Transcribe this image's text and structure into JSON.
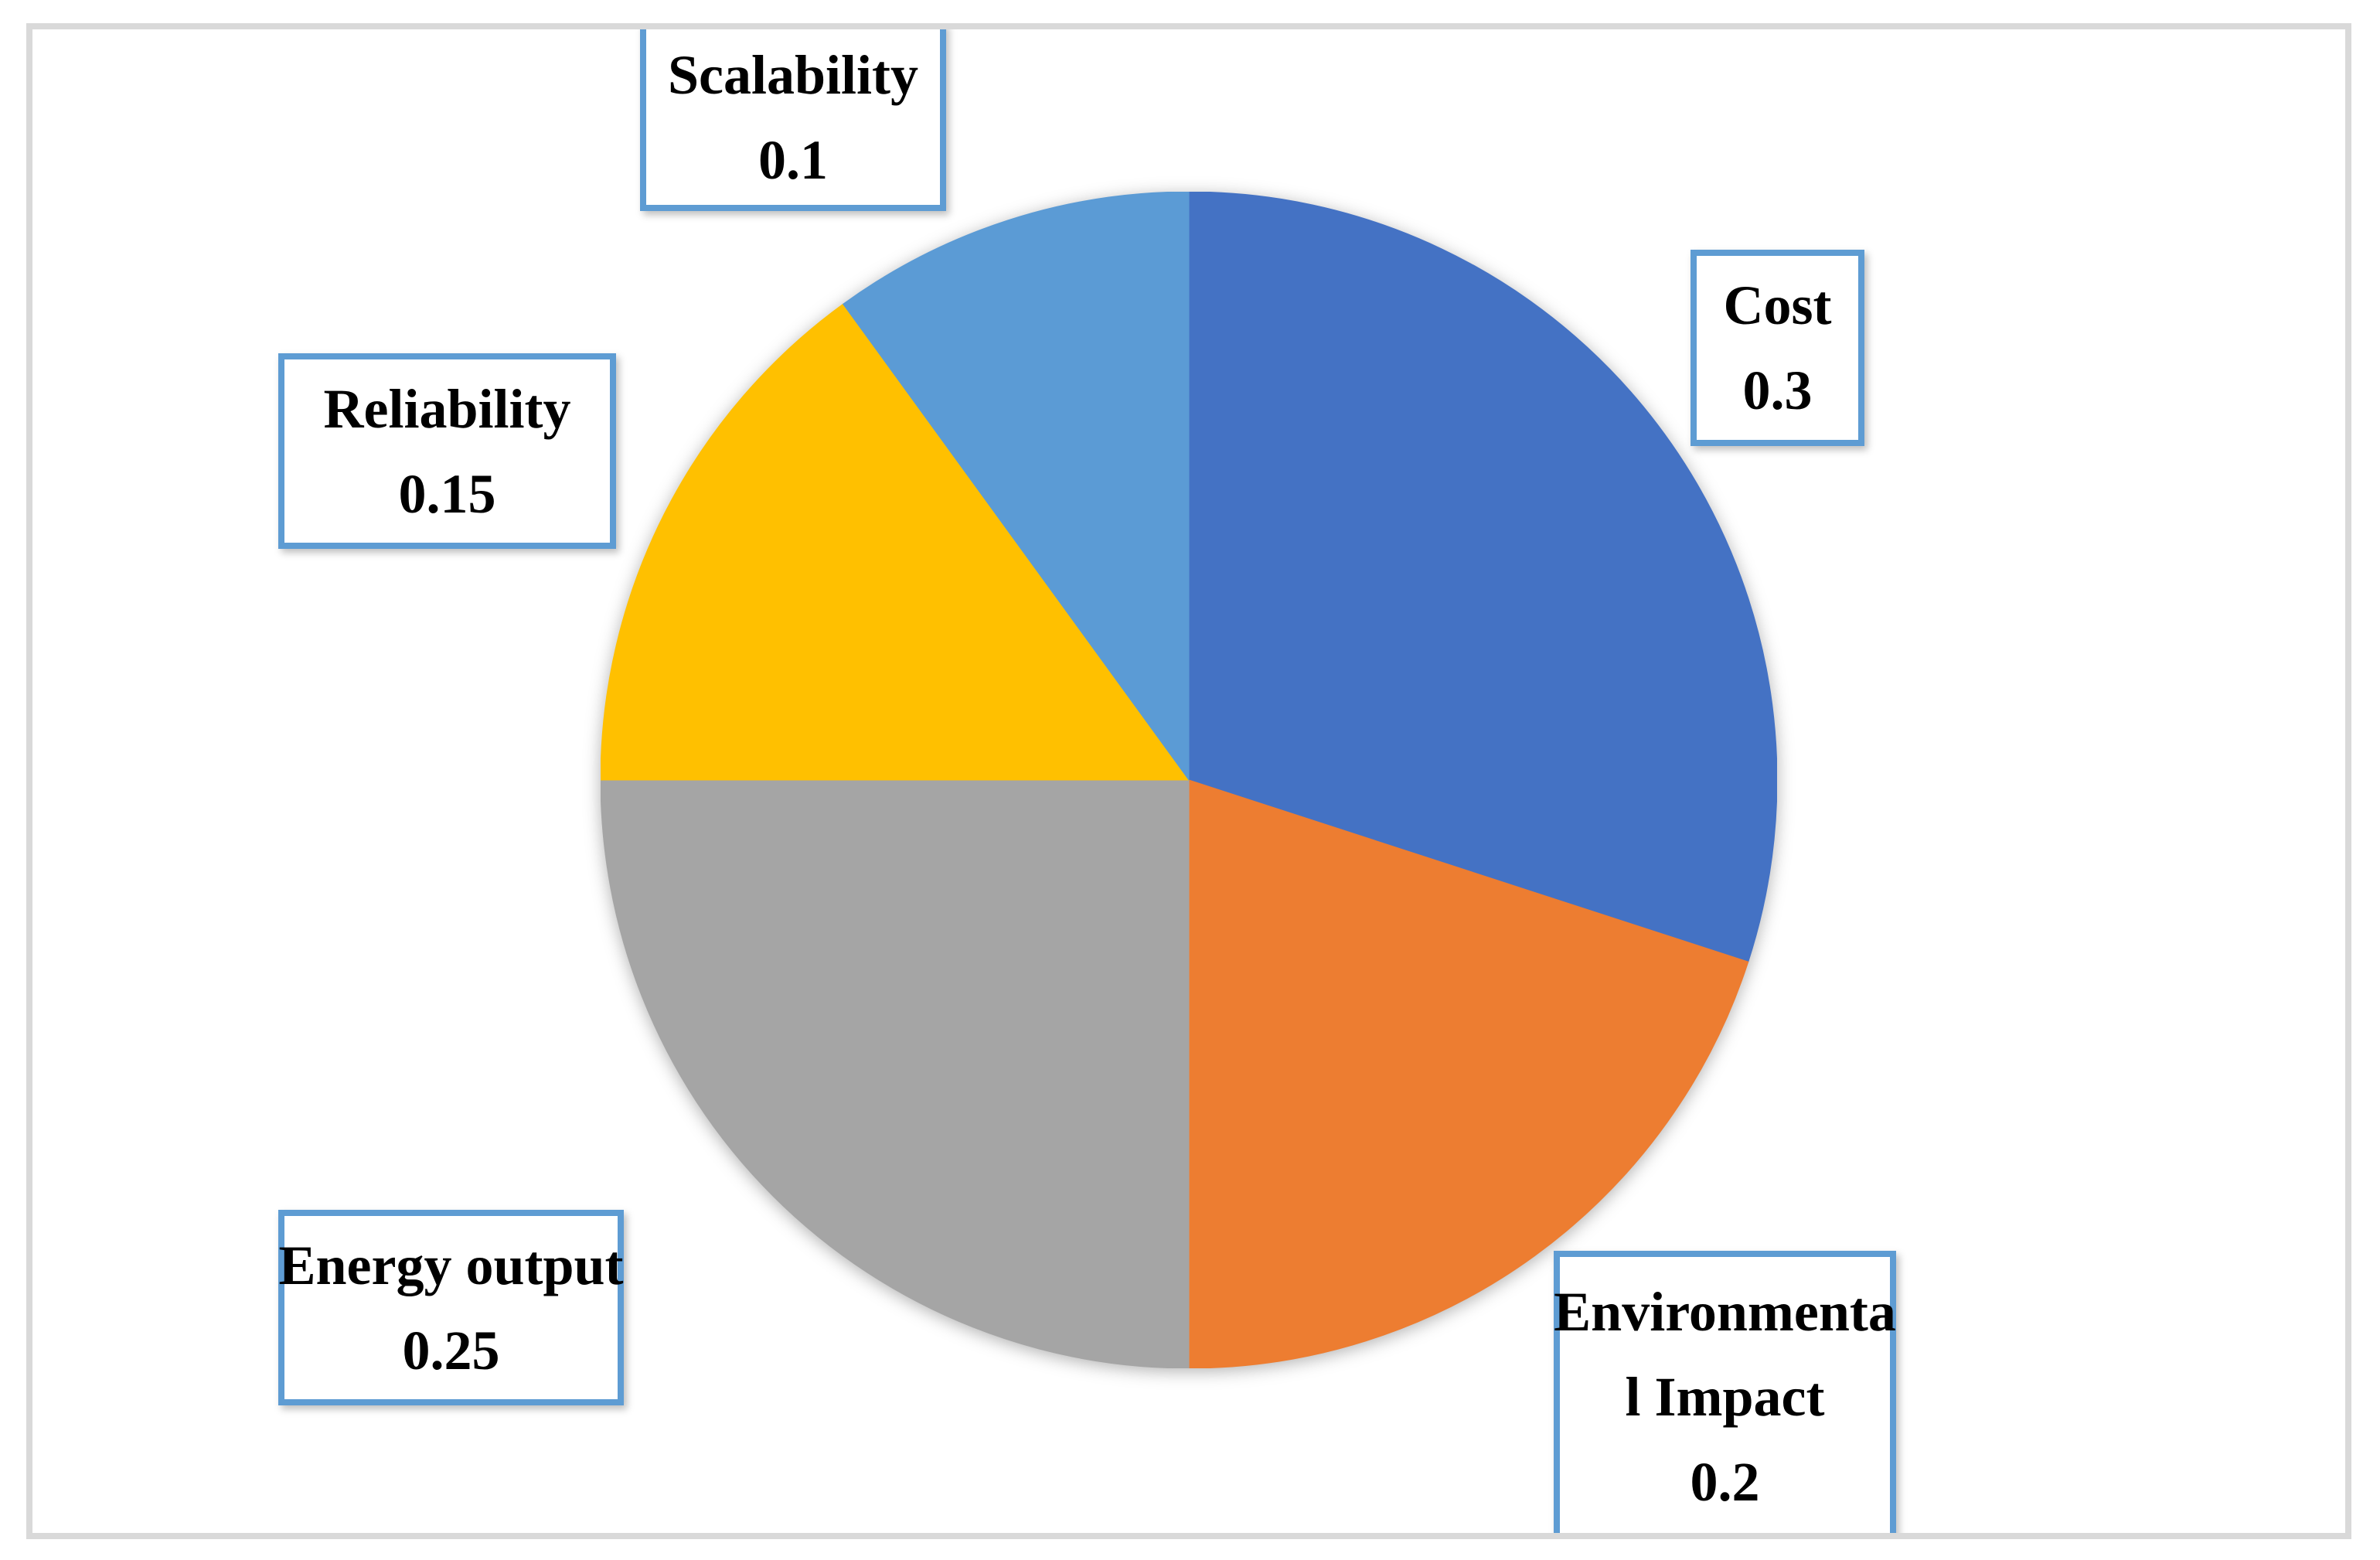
{
  "figure": {
    "background_color": "#FFFFFF",
    "frame_color": "#D9D9D9",
    "callout_border_color": "#5E9CD3",
    "text_color": "#000000"
  },
  "chart_data": {
    "type": "pie",
    "title": "",
    "legend": "none",
    "start_angle_deg": 0,
    "direction": "clockwise",
    "categories": [
      "Cost",
      "Environmental Impact",
      "Energy output",
      "Reliability",
      "Scalability"
    ],
    "values": [
      0.3,
      0.2,
      0.25,
      0.15,
      0.1
    ],
    "colors": [
      "#4472C4",
      "#ED7D31",
      "#A5A5A5",
      "#FFC000",
      "#5B9BD5"
    ],
    "data_labels": {
      "cost": {
        "lines": [
          "Cost",
          "0.3"
        ]
      },
      "environmental": {
        "lines": [
          "Environmenta",
          "l Impact",
          "0.2"
        ]
      },
      "energy": {
        "lines": [
          "Energy output",
          "0.25"
        ]
      },
      "reliability": {
        "lines": [
          "Reliability",
          "0.15"
        ]
      },
      "scalability": {
        "lines": [
          "Scalability",
          "0.1"
        ]
      }
    }
  }
}
